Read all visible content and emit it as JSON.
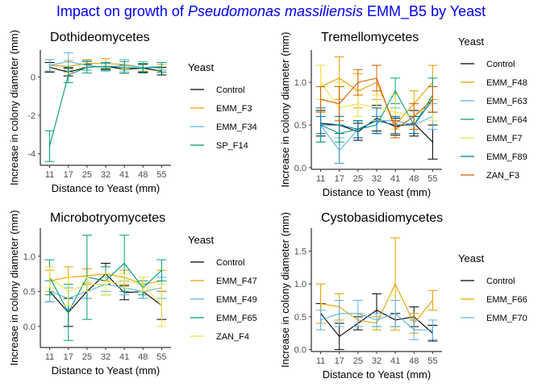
{
  "title": {
    "prefix": "Impact on growth of ",
    "italic": "Pseudomonas massiliensis",
    "suffix": " EMM_B5 by Yeast",
    "color": "#0000ee"
  },
  "chart_data": [
    {
      "type": "line",
      "title": "Dothideomycetes",
      "xlabel": "Distance to Yeast (mm)",
      "ylabel": "Increase in colony diameter (mm)",
      "categories": [
        "11",
        "17",
        "25",
        "32",
        "41",
        "48",
        "55"
      ],
      "ylim": [
        -4.6,
        1.4
      ],
      "yticks": [
        -4,
        -2,
        0
      ],
      "legend_title": "Yeast",
      "series": [
        {
          "name": "Control",
          "color": "#000000",
          "values": [
            0.5,
            0.25,
            0.5,
            0.55,
            0.4,
            0.45,
            0.3
          ],
          "err": [
            0.25,
            0.2,
            0.15,
            0.15,
            0.2,
            0.2,
            0.2
          ]
        },
        {
          "name": "EMM_F3",
          "color": "#e69f00",
          "values": [
            0.6,
            0.55,
            0.7,
            0.7,
            0.65,
            0.5,
            0.45
          ],
          "err": [
            0.3,
            0.3,
            0.2,
            0.25,
            0.25,
            0.2,
            0.2
          ]
        },
        {
          "name": "EMM_F34",
          "color": "#56b4e9",
          "values": [
            0.6,
            0.8,
            0.6,
            0.5,
            0.6,
            0.5,
            0.55
          ],
          "err": [
            0.3,
            0.45,
            0.25,
            0.2,
            0.3,
            0.3,
            0.2
          ]
        },
        {
          "name": "SP_F14",
          "color": "#009e73",
          "values": [
            -3.6,
            0.1,
            0.5,
            0.55,
            0.5,
            0.45,
            0.5
          ],
          "err": [
            0.8,
            0.4,
            0.3,
            0.2,
            0.3,
            0.25,
            0.25
          ]
        }
      ]
    },
    {
      "type": "line",
      "title": "Tremellomycetes",
      "xlabel": "Distance to Yeast (mm)",
      "ylabel": "Increase in colony diameter (mm)",
      "categories": [
        "11",
        "17",
        "25",
        "32",
        "41",
        "48",
        "55"
      ],
      "ylim": [
        -0.02,
        1.38
      ],
      "yticks": [
        0.0,
        0.5,
        1.0
      ],
      "legend_title": "Yeast",
      "series": [
        {
          "name": "Control",
          "color": "#000000",
          "values": [
            0.52,
            0.5,
            0.42,
            0.58,
            0.48,
            0.52,
            0.3
          ],
          "err": [
            0.15,
            0.45,
            0.1,
            0.15,
            0.1,
            0.15,
            0.2
          ]
        },
        {
          "name": "EMM_F48",
          "color": "#e69f00",
          "values": [
            0.95,
            1.05,
            0.9,
            1.0,
            0.5,
            0.75,
            1.0
          ],
          "err": [
            0.25,
            0.25,
            0.2,
            0.2,
            0.1,
            0.15,
            0.2
          ]
        },
        {
          "name": "EMM_F63",
          "color": "#56b4e9",
          "values": [
            0.5,
            0.2,
            0.45,
            0.55,
            0.55,
            0.5,
            0.6
          ],
          "err": [
            0.2,
            0.15,
            0.1,
            0.15,
            0.15,
            0.1,
            0.15
          ]
        },
        {
          "name": "EMM_F64",
          "color": "#009e73",
          "values": [
            0.5,
            0.4,
            0.45,
            0.5,
            0.9,
            0.5,
            0.85
          ],
          "err": [
            0.2,
            0.1,
            0.1,
            0.1,
            0.15,
            0.1,
            0.2
          ]
        },
        {
          "name": "EMM_F7",
          "color": "#f0e442",
          "values": [
            1.0,
            0.7,
            0.75,
            0.7,
            0.65,
            0.6,
            0.75
          ],
          "err": [
            0.2,
            0.3,
            0.15,
            0.15,
            0.2,
            0.15,
            0.2
          ]
        },
        {
          "name": "EMM_F89",
          "color": "#0072b2",
          "values": [
            0.5,
            0.5,
            0.45,
            0.55,
            0.5,
            0.5,
            0.8
          ],
          "err": [
            0.1,
            0.1,
            0.1,
            0.15,
            0.1,
            0.1,
            0.15
          ]
        },
        {
          "name": "ZAN_F3",
          "color": "#d55e00",
          "values": [
            0.8,
            0.75,
            1.0,
            1.05,
            0.45,
            0.6,
            0.8
          ],
          "err": [
            0.15,
            0.2,
            0.15,
            0.15,
            0.1,
            0.15,
            0.15
          ]
        }
      ]
    },
    {
      "type": "line",
      "title": "Microbotryomycetes",
      "xlabel": "Distance to Yeast (mm)",
      "ylabel": "Increase in colony diameter (mm)",
      "categories": [
        "11",
        "17",
        "25",
        "32",
        "41",
        "48",
        "55"
      ],
      "ylim": [
        -0.3,
        1.4
      ],
      "yticks": [
        0.0,
        0.5,
        1.0
      ],
      "legend_title": "Yeast",
      "series": [
        {
          "name": "Control",
          "color": "#000000",
          "values": [
            0.5,
            0.2,
            0.5,
            0.75,
            0.48,
            0.5,
            0.3
          ],
          "err": [
            0.15,
            0.2,
            0.1,
            0.15,
            0.1,
            0.1,
            0.2
          ]
        },
        {
          "name": "EMM_F47",
          "color": "#e69f00",
          "values": [
            0.65,
            0.7,
            0.72,
            0.75,
            0.7,
            0.6,
            0.65
          ],
          "err": [
            0.15,
            0.15,
            0.1,
            0.1,
            0.1,
            0.1,
            0.15
          ]
        },
        {
          "name": "EMM_F49",
          "color": "#56b4e9",
          "values": [
            0.5,
            0.4,
            0.5,
            0.6,
            0.55,
            0.5,
            0.55
          ],
          "err": [
            0.15,
            0.15,
            0.1,
            0.1,
            0.1,
            0.1,
            0.15
          ]
        },
        {
          "name": "EMM_F65",
          "color": "#009e73",
          "values": [
            0.7,
            0.2,
            0.7,
            0.65,
            0.9,
            0.55,
            0.8
          ],
          "err": [
            0.25,
            0.4,
            0.6,
            0.2,
            0.4,
            0.1,
            0.15
          ]
        },
        {
          "name": "ZAN_F4",
          "color": "#f0e442",
          "values": [
            0.7,
            0.5,
            0.6,
            0.6,
            0.65,
            0.6,
            0.3
          ],
          "err": [
            0.15,
            0.2,
            0.1,
            0.15,
            0.1,
            0.1,
            0.3
          ]
        }
      ]
    },
    {
      "type": "line",
      "title": "Cystobasidiomycetes",
      "xlabel": "Distance to Yeast (mm)",
      "ylabel": "Increase in colony diameter (mm)",
      "categories": [
        "11",
        "17",
        "25",
        "32",
        "41",
        "48",
        "55"
      ],
      "ylim": [
        -0.03,
        1.85
      ],
      "yticks": [
        0.0,
        0.5,
        1.0,
        1.5
      ],
      "legend_title": "Yeast",
      "series": [
        {
          "name": "Control",
          "color": "#000000",
          "values": [
            0.55,
            0.2,
            0.4,
            0.6,
            0.45,
            0.5,
            0.25
          ],
          "err": [
            0.15,
            0.2,
            0.1,
            0.25,
            0.1,
            0.15,
            0.12
          ]
        },
        {
          "name": "EMM_F66",
          "color": "#e69f00",
          "values": [
            0.7,
            0.65,
            0.45,
            0.4,
            1.0,
            0.4,
            0.75
          ],
          "err": [
            0.3,
            0.2,
            0.1,
            0.1,
            0.7,
            0.15,
            0.15
          ]
        },
        {
          "name": "EMM_F70",
          "color": "#56b4e9",
          "values": [
            0.45,
            0.55,
            0.55,
            0.45,
            0.55,
            0.3,
            0.3
          ],
          "err": [
            0.15,
            0.2,
            0.2,
            0.1,
            0.2,
            0.15,
            0.15
          ]
        }
      ]
    }
  ]
}
